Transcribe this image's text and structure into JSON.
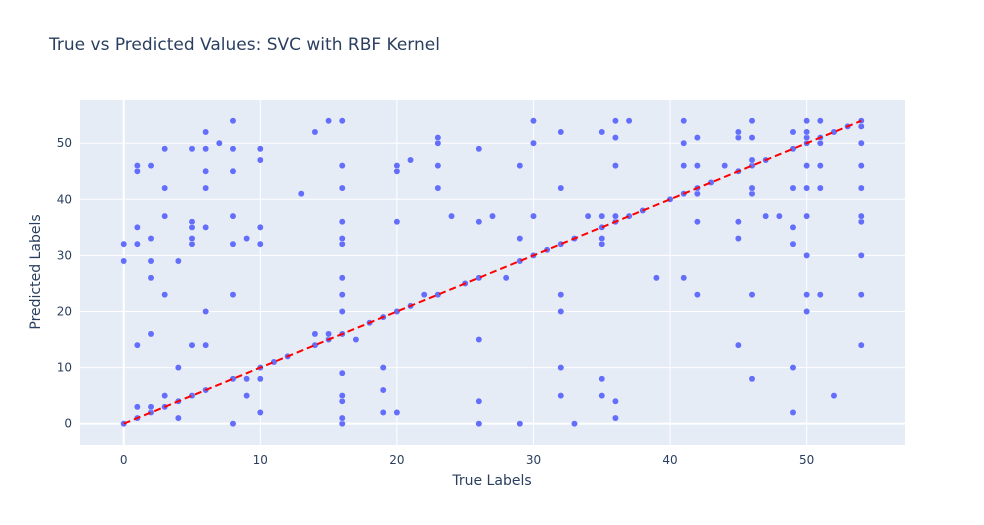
{
  "chart_data": {
    "type": "scatter",
    "title": "True vs Predicted Values: SVC with RBF Kernel",
    "xlabel": "True Labels",
    "ylabel": "Predicted Labels",
    "xlim": [
      -3.2,
      57.2
    ],
    "ylim": [
      -3.8,
      57.7
    ],
    "x_ticks": [
      0,
      10,
      20,
      30,
      40,
      50
    ],
    "y_ticks": [
      0,
      10,
      20,
      30,
      40,
      50
    ],
    "grid": true,
    "legend": "none",
    "colors": {
      "points": "#636efa",
      "reference_line": "#ff0000",
      "plot_bg": "#e5ecf6",
      "grid": "#ffffff",
      "text": "#2a3f5f"
    },
    "series": [
      {
        "type": "scatter",
        "points": [
          [
            0,
            0
          ],
          [
            0,
            29
          ],
          [
            0,
            32
          ],
          [
            1,
            1
          ],
          [
            1,
            3
          ],
          [
            1,
            14
          ],
          [
            1,
            32
          ],
          [
            1,
            35
          ],
          [
            1,
            45
          ],
          [
            1,
            46
          ],
          [
            2,
            2
          ],
          [
            2,
            3
          ],
          [
            2,
            16
          ],
          [
            2,
            26
          ],
          [
            2,
            29
          ],
          [
            2,
            33
          ],
          [
            2,
            46
          ],
          [
            3,
            3
          ],
          [
            3,
            5
          ],
          [
            3,
            23
          ],
          [
            3,
            37
          ],
          [
            3,
            42
          ],
          [
            3,
            49
          ],
          [
            4,
            1
          ],
          [
            4,
            4
          ],
          [
            4,
            10
          ],
          [
            4,
            29
          ],
          [
            5,
            5
          ],
          [
            5,
            14
          ],
          [
            5,
            32
          ],
          [
            5,
            33
          ],
          [
            5,
            35
          ],
          [
            5,
            36
          ],
          [
            5,
            49
          ],
          [
            6,
            6
          ],
          [
            6,
            14
          ],
          [
            6,
            20
          ],
          [
            6,
            35
          ],
          [
            6,
            42
          ],
          [
            6,
            45
          ],
          [
            6,
            49
          ],
          [
            6,
            52
          ],
          [
            7,
            50
          ],
          [
            8,
            0
          ],
          [
            8,
            8
          ],
          [
            8,
            23
          ],
          [
            8,
            32
          ],
          [
            8,
            37
          ],
          [
            8,
            45
          ],
          [
            8,
            49
          ],
          [
            8,
            54
          ],
          [
            9,
            5
          ],
          [
            9,
            8
          ],
          [
            9,
            33
          ],
          [
            10,
            2
          ],
          [
            10,
            8
          ],
          [
            10,
            10
          ],
          [
            10,
            32
          ],
          [
            10,
            35
          ],
          [
            10,
            47
          ],
          [
            10,
            49
          ],
          [
            11,
            11
          ],
          [
            12,
            12
          ],
          [
            13,
            41
          ],
          [
            14,
            14
          ],
          [
            14,
            16
          ],
          [
            14,
            52
          ],
          [
            15,
            15
          ],
          [
            15,
            16
          ],
          [
            15,
            54
          ],
          [
            16,
            0
          ],
          [
            16,
            1
          ],
          [
            16,
            4
          ],
          [
            16,
            5
          ],
          [
            16,
            9
          ],
          [
            16,
            16
          ],
          [
            16,
            20
          ],
          [
            16,
            23
          ],
          [
            16,
            26
          ],
          [
            16,
            32
          ],
          [
            16,
            33
          ],
          [
            16,
            36
          ],
          [
            16,
            42
          ],
          [
            16,
            46
          ],
          [
            16,
            54
          ],
          [
            17,
            15
          ],
          [
            18,
            18
          ],
          [
            19,
            2
          ],
          [
            19,
            6
          ],
          [
            19,
            10
          ],
          [
            19,
            19
          ],
          [
            20,
            2
          ],
          [
            20,
            20
          ],
          [
            20,
            36
          ],
          [
            20,
            45
          ],
          [
            20,
            46
          ],
          [
            21,
            21
          ],
          [
            21,
            47
          ],
          [
            22,
            23
          ],
          [
            23,
            23
          ],
          [
            23,
            42
          ],
          [
            23,
            46
          ],
          [
            23,
            50
          ],
          [
            23,
            51
          ],
          [
            24,
            37
          ],
          [
            25,
            25
          ],
          [
            26,
            0
          ],
          [
            26,
            4
          ],
          [
            26,
            15
          ],
          [
            26,
            26
          ],
          [
            26,
            36
          ],
          [
            26,
            49
          ],
          [
            27,
            37
          ],
          [
            28,
            26
          ],
          [
            29,
            0
          ],
          [
            29,
            29
          ],
          [
            29,
            33
          ],
          [
            29,
            46
          ],
          [
            30,
            30
          ],
          [
            30,
            37
          ],
          [
            30,
            50
          ],
          [
            30,
            54
          ],
          [
            31,
            31
          ],
          [
            32,
            5
          ],
          [
            32,
            10
          ],
          [
            32,
            20
          ],
          [
            32,
            23
          ],
          [
            32,
            32
          ],
          [
            32,
            42
          ],
          [
            32,
            52
          ],
          [
            33,
            0
          ],
          [
            33,
            33
          ],
          [
            34,
            37
          ],
          [
            35,
            5
          ],
          [
            35,
            8
          ],
          [
            35,
            32
          ],
          [
            35,
            33
          ],
          [
            35,
            35
          ],
          [
            35,
            37
          ],
          [
            35,
            52
          ],
          [
            36,
            1
          ],
          [
            36,
            4
          ],
          [
            36,
            36
          ],
          [
            36,
            37
          ],
          [
            36,
            46
          ],
          [
            36,
            51
          ],
          [
            36,
            54
          ],
          [
            37,
            37
          ],
          [
            37,
            54
          ],
          [
            38,
            38
          ],
          [
            39,
            26
          ],
          [
            40,
            40
          ],
          [
            41,
            26
          ],
          [
            41,
            41
          ],
          [
            41,
            46
          ],
          [
            41,
            50
          ],
          [
            41,
            54
          ],
          [
            42,
            23
          ],
          [
            42,
            36
          ],
          [
            42,
            41
          ],
          [
            42,
            42
          ],
          [
            42,
            46
          ],
          [
            42,
            51
          ],
          [
            43,
            43
          ],
          [
            44,
            46
          ],
          [
            45,
            14
          ],
          [
            45,
            33
          ],
          [
            45,
            36
          ],
          [
            45,
            45
          ],
          [
            45,
            51
          ],
          [
            45,
            52
          ],
          [
            46,
            8
          ],
          [
            46,
            23
          ],
          [
            46,
            41
          ],
          [
            46,
            42
          ],
          [
            46,
            46
          ],
          [
            46,
            47
          ],
          [
            46,
            51
          ],
          [
            46,
            54
          ],
          [
            47,
            37
          ],
          [
            47,
            47
          ],
          [
            48,
            37
          ],
          [
            49,
            2
          ],
          [
            49,
            10
          ],
          [
            49,
            32
          ],
          [
            49,
            35
          ],
          [
            49,
            42
          ],
          [
            49,
            49
          ],
          [
            49,
            52
          ],
          [
            50,
            20
          ],
          [
            50,
            23
          ],
          [
            50,
            30
          ],
          [
            50,
            37
          ],
          [
            50,
            42
          ],
          [
            50,
            46
          ],
          [
            50,
            50
          ],
          [
            50,
            51
          ],
          [
            50,
            52
          ],
          [
            50,
            54
          ],
          [
            51,
            23
          ],
          [
            51,
            42
          ],
          [
            51,
            46
          ],
          [
            51,
            50
          ],
          [
            51,
            51
          ],
          [
            51,
            54
          ],
          [
            52,
            5
          ],
          [
            52,
            52
          ],
          [
            53,
            53
          ],
          [
            54,
            14
          ],
          [
            54,
            23
          ],
          [
            54,
            30
          ],
          [
            54,
            36
          ],
          [
            54,
            37
          ],
          [
            54,
            42
          ],
          [
            54,
            46
          ],
          [
            54,
            50
          ],
          [
            54,
            53
          ],
          [
            54,
            54
          ]
        ]
      },
      {
        "type": "line",
        "style": "dashed",
        "x": [
          0,
          54
        ],
        "y": [
          0,
          54
        ]
      }
    ]
  }
}
